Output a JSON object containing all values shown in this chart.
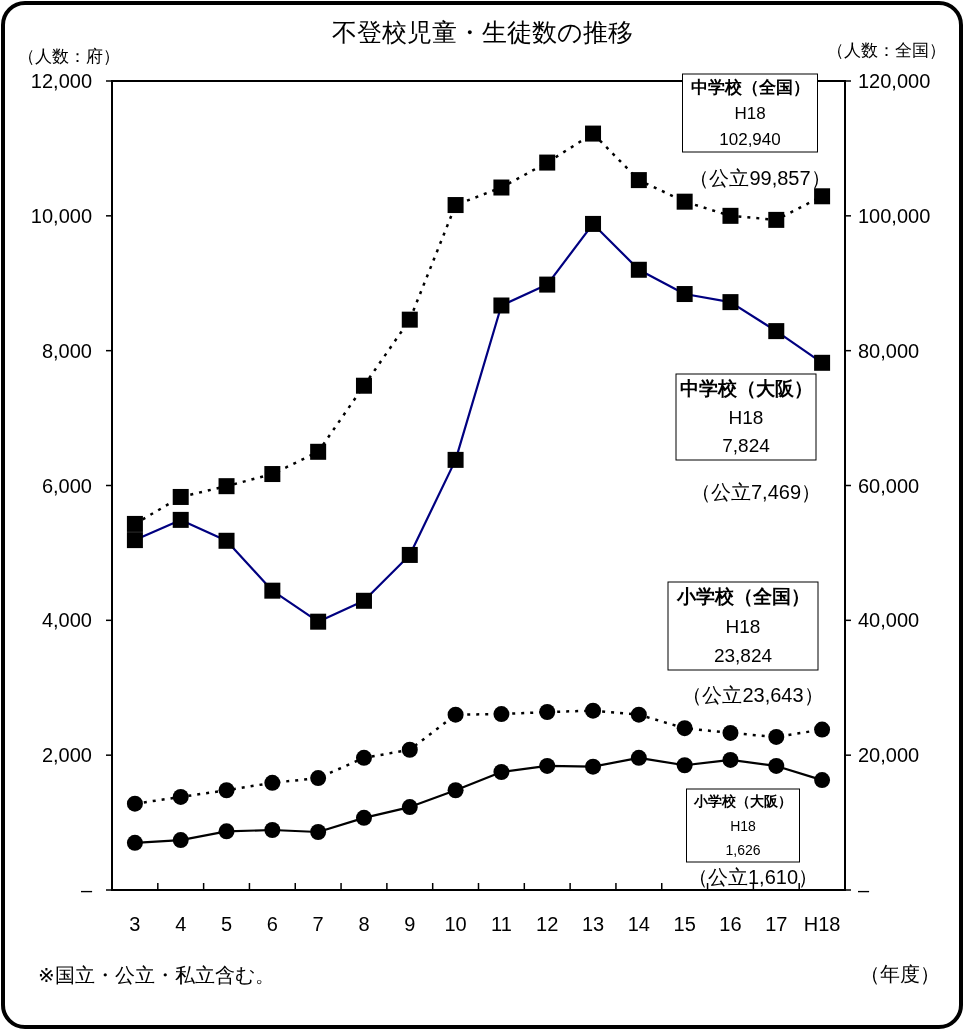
{
  "chart_data": {
    "type": "line",
    "title": "不登校児童・生徒数の推移",
    "xlabel": "（年度）",
    "ylabel": "（人数：府）",
    "y2label": "（人数：全国）",
    "categories": [
      "3",
      "4",
      "5",
      "6",
      "7",
      "8",
      "9",
      "10",
      "11",
      "12",
      "13",
      "14",
      "15",
      "16",
      "17",
      "H18"
    ],
    "ylim": [
      0,
      12000
    ],
    "yticks": [
      {
        "value": 0,
        "label": "–"
      },
      {
        "value": 2000,
        "label": "2,000"
      },
      {
        "value": 4000,
        "label": "4,000"
      },
      {
        "value": 6000,
        "label": "6,000"
      },
      {
        "value": 8000,
        "label": "8,000"
      },
      {
        "value": 10000,
        "label": "10,000"
      },
      {
        "value": 12000,
        "label": "12,000"
      }
    ],
    "y2lim": [
      0,
      120000
    ],
    "y2ticks": [
      {
        "value": 0,
        "label": "–"
      },
      {
        "value": 20000,
        "label": "20,000"
      },
      {
        "value": 40000,
        "label": "40,000"
      },
      {
        "value": 60000,
        "label": "60,000"
      },
      {
        "value": 80000,
        "label": "80,000"
      },
      {
        "value": 100000,
        "label": "100,000"
      },
      {
        "value": 120000,
        "label": "120,000"
      }
    ],
    "series": [
      {
        "color": "#000000",
        "axis": "y2",
        "line_style": "dotted",
        "marker": "square",
        "values": [
          54300,
          58300,
          59900,
          61700,
          65000,
          74800,
          84600,
          101600,
          104200,
          107900,
          112200,
          105300,
          102100,
          100000,
          99400,
          102900
        ]
      },
      {
        "color": "#000080",
        "line_style": "solid",
        "marker": "square",
        "values": [
          5190,
          5490,
          5180,
          4440,
          3980,
          4290,
          4970,
          6380,
          8670,
          8980,
          9880,
          9200,
          8840,
          8720,
          8290,
          7820
        ]
      },
      {
        "color": "#000000",
        "axis": "y2",
        "line_style": "dotted",
        "marker": "circle",
        "values": [
          12800,
          13800,
          14800,
          15900,
          16600,
          19600,
          20800,
          26000,
          26100,
          26400,
          26600,
          26000,
          24000,
          23300,
          22700,
          23800
        ]
      },
      {
        "color": "#000000",
        "line_style": "solid",
        "marker": "circle",
        "values": [
          700,
          740,
          870,
          890,
          860,
          1070,
          1230,
          1480,
          1750,
          1840,
          1830,
          1960,
          1850,
          1930,
          1840,
          1630
        ]
      }
    ],
    "annotations": [
      "中学校（全国）",
      "H18",
      "102,940",
      "（公立99,857）",
      "中学校（大阪）",
      "H18",
      "7,824",
      "（公立7,469）",
      "小学校（全国）",
      "H18",
      "23,824",
      "（公立23,643）",
      "小学校（大阪）",
      "H18",
      "1,626",
      "（公立1,610）",
      "※国立・公立・私立含む。"
    ]
  }
}
